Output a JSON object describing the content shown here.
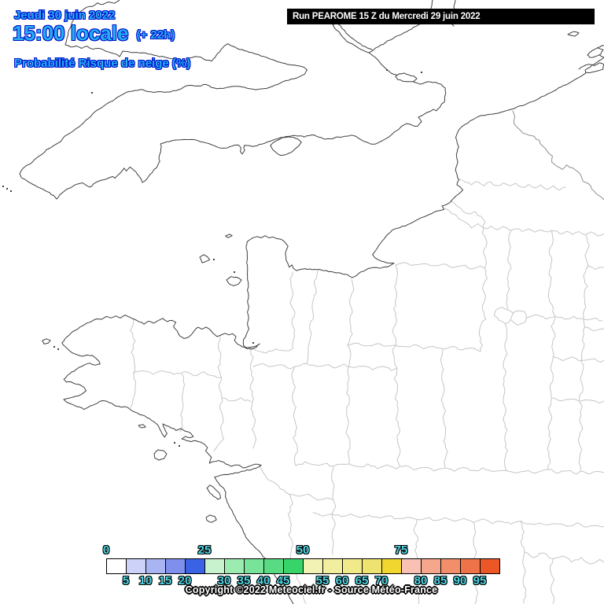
{
  "header": {
    "date_line": "Jeudi 30 juin 2022",
    "time_line": "15:00 locale",
    "offset_label": "(+ 22h)",
    "variable_label": "Probabilité Risque de neige (%)",
    "run_label": "Run PEAROME 15 Z du Mercredi 29 juin 2022"
  },
  "footer": {
    "copyright": "Copyright ©2022 Meteociel.fr - Source Météo-France"
  },
  "legend": {
    "unit": "%",
    "ticks_top": [
      "0",
      "25",
      "50",
      "75"
    ],
    "ticks_bottom": [
      "5",
      "10",
      "15",
      "20",
      "30",
      "35",
      "40",
      "45",
      "55",
      "60",
      "65",
      "70",
      "80",
      "85",
      "90",
      "95"
    ],
    "cell_colors": [
      "#ffffff",
      "#cdd2f9",
      "#a9b4f2",
      "#7e90ec",
      "#3a62e5",
      "#c8f1cd",
      "#9cebb0",
      "#79e399",
      "#59db84",
      "#37d569",
      "#f3f2b5",
      "#f1ee9f",
      "#f0ea8b",
      "#eee371",
      "#f0d62e",
      "#f8c1b3",
      "#f5a78d",
      "#f28e6a",
      "#ef7349",
      "#ec5727"
    ]
  },
  "colors": {
    "title_text": "#25acf2",
    "title_outline": "#0012cc",
    "tick_text": "#4dd7e6",
    "run_bar_background": "#000000",
    "run_bar_text": "#ffffff",
    "copyright_text": "#ffffff",
    "coastline": "#3f3f3f",
    "country_border": "#8e8e8e",
    "department_border": "#c6c6c6",
    "sea_and_land": "#ffffff"
  }
}
